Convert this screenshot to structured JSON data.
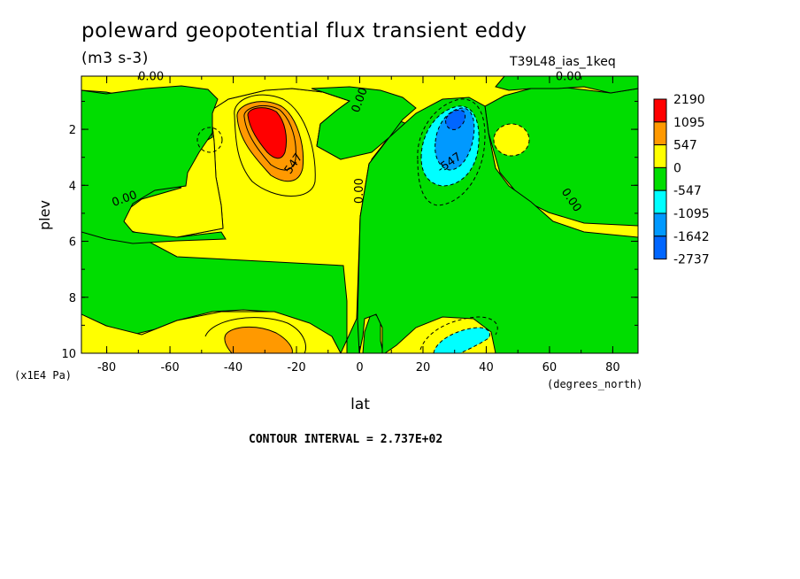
{
  "title": "poleward geopotential flux transient eddy",
  "units": "(m3 s-3)",
  "run_id": "T39L48_ias_1keq",
  "contour_interval": "CONTOUR INTERVAL = 2.737E+02",
  "chart_data": {
    "type": "contour",
    "title": "poleward geopotential flux transient eddy",
    "xlabel": "lat",
    "xunits": "(degrees_north)",
    "ylabel": "plev",
    "yunits": "(x1E4 Pa)",
    "xlim": [
      -88,
      88
    ],
    "ylim": [
      10,
      0.1
    ],
    "x_ticks": [
      -80,
      -60,
      -40,
      -20,
      0,
      20,
      40,
      60,
      80
    ],
    "x_tick_labels": [
      "-80",
      "-60",
      "-40",
      "-20",
      "0",
      "20",
      "40",
      "60",
      "80"
    ],
    "y_ticks": [
      2,
      4,
      6,
      8,
      10
    ],
    "y_tick_labels": [
      "2",
      "4",
      "6",
      "8",
      "10"
    ],
    "colorbar": {
      "labels": [
        "2190",
        "1095",
        "547",
        "0",
        "-547",
        "-1095",
        "-1642",
        "-2737"
      ],
      "colors": [
        "#ff0000",
        "#ff9900",
        "#ffff00",
        "#00dd00",
        "#00ffff",
        "#0099ff",
        "#0066ff"
      ]
    },
    "contour_labels": [
      {
        "text": "0.00",
        "x": -66,
        "y": 0.25
      },
      {
        "text": "0.00",
        "x": 1,
        "y": 1.0
      },
      {
        "text": "0.00",
        "x": 66,
        "y": 0.25
      },
      {
        "text": "0.00",
        "x": -74,
        "y": 4.6
      },
      {
        "text": "0.00",
        "x": 1,
        "y": 4.2
      },
      {
        "text": "0.00",
        "x": 66,
        "y": 4.6
      },
      {
        "text": "547",
        "x": -20,
        "y": 3.3
      },
      {
        "text": "-547",
        "x": 29,
        "y": 3.3
      }
    ],
    "grid": false,
    "colors": {
      "green": "#00dd00",
      "yellow": "#ffff00",
      "orange": "#ff9900",
      "red": "#ff0000",
      "cyan": "#00ffff",
      "blue": "#0099ff",
      "darkblue": "#0066ff"
    }
  }
}
